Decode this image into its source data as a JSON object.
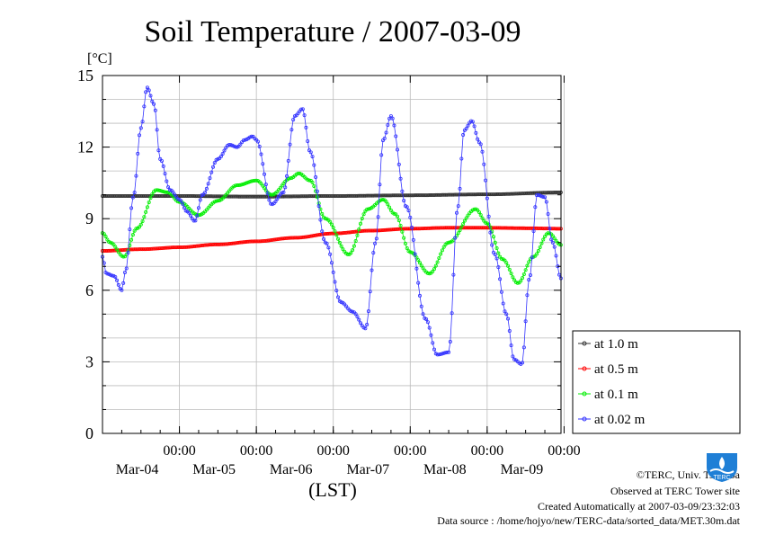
{
  "chart_data": {
    "type": "line",
    "title": "Soil Temperature / 2007-03-09",
    "ylabel": "[°C]",
    "xlabel": "(LST)",
    "ylim": [
      0,
      15
    ],
    "yticks": [
      "0",
      "3",
      "6",
      "9",
      "12",
      "15"
    ],
    "xticks": [
      {
        "time": "00:00",
        "date": "Mar-04"
      },
      {
        "time": "00:00",
        "date": "Mar-05"
      },
      {
        "time": "00:00",
        "date": "Mar-06"
      },
      {
        "time": "00:00",
        "date": "Mar-07"
      },
      {
        "time": "00:00",
        "date": "Mar-08"
      },
      {
        "time": "00:00",
        "date": "Mar-09"
      }
    ],
    "xlim_days": [
      -1.0,
      4.96
    ],
    "grid": true,
    "legend_position": "right",
    "series": [
      {
        "name": "at 1.0 m",
        "color": "#333333",
        "x": [
          -1.0,
          0.0,
          1.0,
          2.0,
          3.0,
          4.0,
          4.96
        ],
        "y": [
          9.95,
          9.95,
          9.92,
          9.95,
          9.98,
          10.02,
          10.1
        ]
      },
      {
        "name": "at 0.5 m",
        "color": "#ff0000",
        "x": [
          -1.0,
          -0.5,
          0.0,
          0.5,
          1.0,
          1.5,
          2.0,
          2.5,
          3.0,
          3.5,
          4.0,
          4.5,
          4.96
        ],
        "y": [
          7.65,
          7.72,
          7.8,
          7.92,
          8.05,
          8.2,
          8.38,
          8.5,
          8.58,
          8.62,
          8.62,
          8.6,
          8.58
        ]
      },
      {
        "name": "at 0.1 m",
        "color": "#00ee00",
        "x": [
          -1.0,
          -0.9,
          -0.72,
          -0.55,
          -0.3,
          -0.15,
          0.0,
          0.25,
          0.5,
          0.75,
          1.0,
          1.2,
          1.45,
          1.55,
          1.7,
          1.9,
          2.2,
          2.45,
          2.65,
          2.8,
          3.0,
          3.25,
          3.5,
          3.85,
          4.0,
          4.2,
          4.4,
          4.6,
          4.8,
          4.96
        ],
        "y": [
          8.4,
          8.0,
          7.4,
          8.6,
          10.2,
          10.1,
          9.7,
          9.15,
          9.75,
          10.4,
          10.6,
          10.0,
          10.7,
          10.9,
          10.6,
          9.0,
          7.5,
          9.4,
          9.8,
          9.2,
          7.6,
          6.7,
          8.0,
          9.4,
          8.8,
          7.3,
          6.3,
          7.4,
          8.4,
          7.9
        ]
      },
      {
        "name": "at 0.02 m",
        "color": "#3333ff",
        "x": [
          -1.0,
          -0.95,
          -0.85,
          -0.75,
          -0.7,
          -0.6,
          -0.5,
          -0.42,
          -0.33,
          -0.25,
          -0.12,
          0.0,
          0.1,
          0.2,
          0.3,
          0.5,
          0.65,
          0.75,
          0.85,
          0.95,
          1.0,
          1.2,
          1.35,
          1.5,
          1.6,
          1.7,
          1.9,
          2.1,
          2.25,
          2.42,
          2.55,
          2.65,
          2.75,
          2.95,
          3.2,
          3.35,
          3.5,
          3.62,
          3.7,
          3.8,
          3.9,
          4.1,
          4.25,
          4.35,
          4.45,
          4.55,
          4.65,
          4.75,
          4.85,
          4.96
        ],
        "y": [
          7.4,
          6.7,
          6.6,
          6.0,
          6.8,
          9.9,
          12.8,
          14.5,
          13.8,
          11.5,
          10.2,
          9.8,
          9.3,
          8.9,
          10.0,
          11.5,
          12.1,
          12.0,
          12.3,
          12.45,
          12.3,
          9.6,
          10.1,
          13.3,
          13.6,
          11.8,
          8.0,
          5.5,
          5.1,
          4.4,
          8.0,
          12.3,
          13.3,
          9.5,
          4.8,
          3.3,
          3.4,
          9.5,
          12.7,
          13.1,
          12.2,
          7.5,
          5.0,
          3.1,
          2.9,
          6.5,
          10.0,
          9.9,
          8.0,
          6.5
        ]
      }
    ]
  },
  "footer": {
    "copyright": "©TERC, Univ. Tsukuba",
    "site": "Observed at TERC Tower site",
    "created": "Created Automatically at 2007-03-09/23:32:03",
    "source": "Data source : /home/hojyo/new/TERC-data/sorted_data/MET.30m.dat"
  },
  "logo": {
    "text": "TERC",
    "color": "#1f7fd6",
    "icon": "terc-logo-icon"
  }
}
